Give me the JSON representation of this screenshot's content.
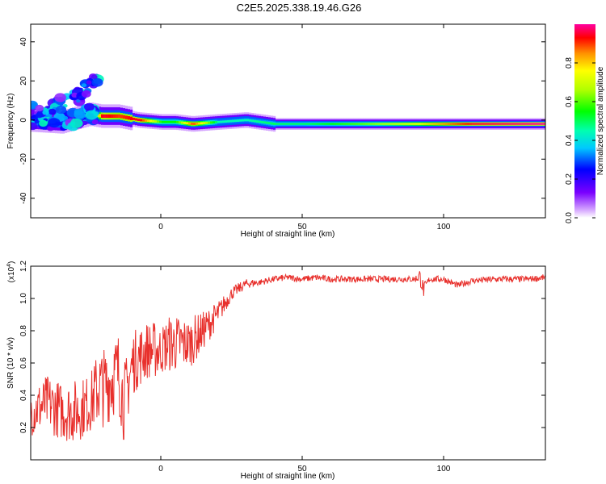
{
  "title": "C2E5.2025.338.19.46.G26",
  "colors": {
    "snr_line": "#e8302c",
    "frame": "#000000",
    "background": "#ffffff"
  },
  "chart_data": [
    {
      "type": "heatmap",
      "title": "C2E5.2025.338.19.46.G26",
      "xlabel": "Height of straight line (km)",
      "ylabel": "Frequency (Hz)",
      "xlim": [
        -46,
        136
      ],
      "ylim": [
        -50,
        49
      ],
      "xticks": [
        0,
        50,
        100
      ],
      "yticks": [
        -40,
        -20,
        0,
        20,
        40
      ],
      "colorbar": {
        "label": "Normalized spectral amplitude",
        "range": [
          0.0,
          1.0
        ],
        "ticks": [
          0.0,
          0.2,
          0.4,
          0.6,
          0.8
        ],
        "colormap": "rainbow (violet to red)"
      },
      "ridge": {
        "description": "Dominant frequency ridge (Hz) vs height (km), with peak normalized amplitude",
        "points": [
          {
            "x": -46,
            "y": 0,
            "amp": 0.35
          },
          {
            "x": -35,
            "y": -1,
            "amp": 0.3
          },
          {
            "x": -25,
            "y": 3,
            "amp": 0.35
          },
          {
            "x": -21,
            "y": 2,
            "amp": 0.95
          },
          {
            "x": -15,
            "y": 2,
            "amp": 0.9
          },
          {
            "x": -8,
            "y": 0,
            "amp": 0.95
          },
          {
            "x": 0,
            "y": -1,
            "amp": 0.55
          },
          {
            "x": 5,
            "y": -1,
            "amp": 0.55
          },
          {
            "x": 11,
            "y": -2,
            "amp": 0.9
          },
          {
            "x": 20,
            "y": -1,
            "amp": 0.45
          },
          {
            "x": 30,
            "y": 0,
            "amp": 0.45
          },
          {
            "x": 40,
            "y": -2,
            "amp": 0.5
          },
          {
            "x": 50,
            "y": -2,
            "amp": 0.5
          },
          {
            "x": 70,
            "y": -2,
            "amp": 0.6
          },
          {
            "x": 90,
            "y": -2,
            "amp": 0.75
          },
          {
            "x": 110,
            "y": -2,
            "amp": 0.95
          },
          {
            "x": 136,
            "y": -2,
            "amp": 1.0
          }
        ],
        "secondary_branch": [
          {
            "x": -46,
            "y": 5
          },
          {
            "x": -40,
            "y": 7
          },
          {
            "x": -35,
            "y": 9
          },
          {
            "x": -30,
            "y": 12
          },
          {
            "x": -26,
            "y": 16
          },
          {
            "x": -24,
            "y": 21
          }
        ]
      }
    },
    {
      "type": "line",
      "xlabel": "Height of straight line (km)",
      "ylabel": "SNR (10 * v/v)",
      "y_multiplier": "(x10",
      "y_multiplier_exp": "4",
      "xlim": [
        -46,
        136
      ],
      "ylim": [
        0.0,
        1.2
      ],
      "xticks": [
        0,
        50,
        100
      ],
      "yticks": [
        0.2,
        0.4,
        0.6,
        0.8,
        1.0,
        1.2
      ],
      "series": [
        {
          "x": [
            -46,
            -40,
            -35,
            -30,
            -25,
            -22,
            -20,
            -15,
            -13,
            -10,
            -5,
            -2,
            0,
            3,
            5,
            7,
            10,
            12,
            15,
            20,
            25,
            30,
            35,
            40,
            45,
            50,
            55,
            60,
            70,
            80,
            90,
            91.5,
            93,
            95,
            100,
            105,
            110,
            120,
            130,
            136
          ],
          "y": [
            0.3,
            0.35,
            0.3,
            0.3,
            0.35,
            0.45,
            0.45,
            0.55,
            0.35,
            0.6,
            0.68,
            0.68,
            0.68,
            0.72,
            0.72,
            0.72,
            0.72,
            0.75,
            0.8,
            0.9,
            1.03,
            1.09,
            1.1,
            1.12,
            1.13,
            1.12,
            1.13,
            1.12,
            1.12,
            1.12,
            1.12,
            1.14,
            1.05,
            1.12,
            1.12,
            1.08,
            1.11,
            1.12,
            1.12,
            1.13
          ],
          "spread": [
            0.15,
            0.18,
            0.18,
            0.2,
            0.18,
            0.25,
            0.25,
            0.25,
            0.25,
            0.2,
            0.18,
            0.18,
            0.15,
            0.18,
            0.18,
            0.18,
            0.15,
            0.15,
            0.12,
            0.08,
            0.04,
            0.03,
            0.02,
            0.02,
            0.02,
            0.02,
            0.02,
            0.02,
            0.02,
            0.02,
            0.02,
            0.05,
            0.05,
            0.02,
            0.02,
            0.02,
            0.02,
            0.02,
            0.02,
            0.02
          ],
          "color": "#e8302c"
        }
      ]
    }
  ]
}
